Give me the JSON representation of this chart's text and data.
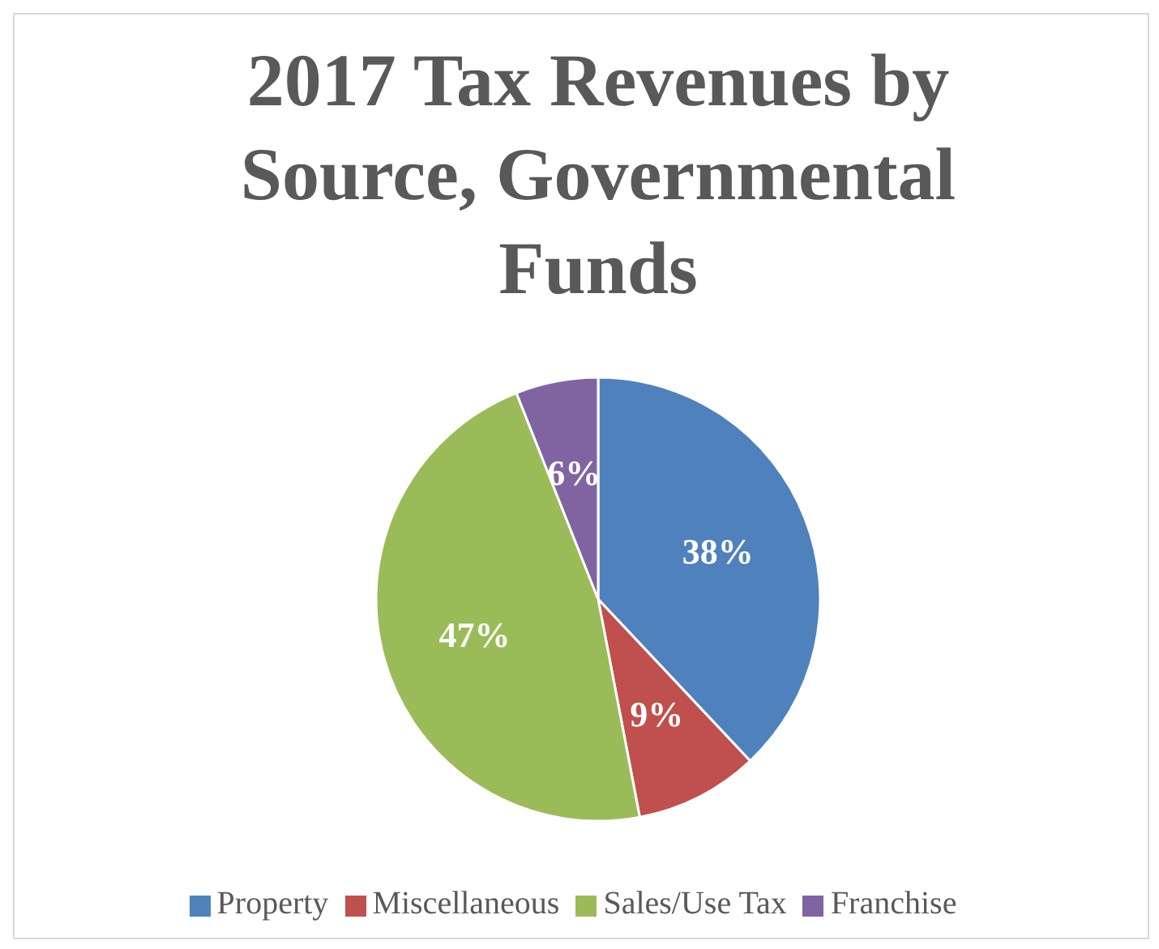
{
  "chart_data": {
    "type": "pie",
    "title": "2017 Tax Revenues by Source, Governmental Funds",
    "categories": [
      "Property",
      "Miscellaneous",
      "Sales/Use Tax",
      "Franchise"
    ],
    "values": [
      38,
      9,
      47,
      6
    ],
    "value_labels": [
      "38%",
      "9%",
      "47%",
      "6%"
    ],
    "colors": [
      "#4f81bd",
      "#c0504d",
      "#9bbb59",
      "#8064a2"
    ],
    "legend": "bottom"
  }
}
